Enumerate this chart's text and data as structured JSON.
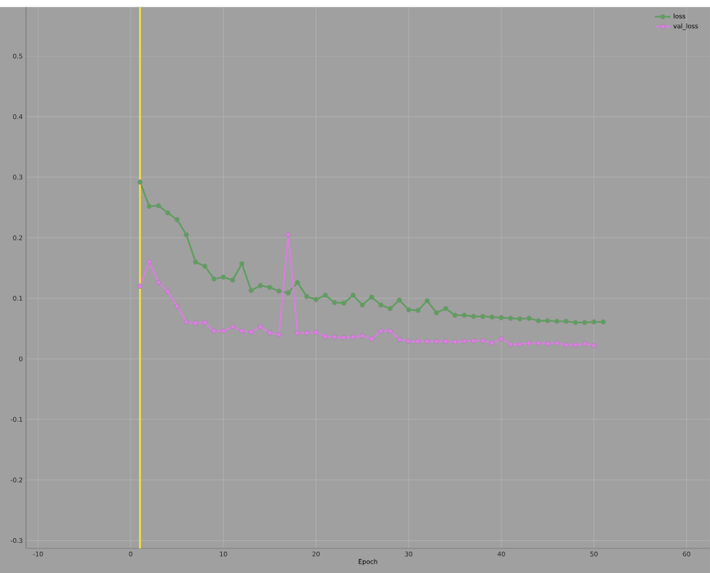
{
  "chart_data": {
    "type": "line",
    "xlabel": "Epoch",
    "series": [
      {
        "name": "loss",
        "color": "#5e9e5e",
        "x": [
          1,
          2,
          3,
          4,
          5,
          6,
          7,
          8,
          9,
          10,
          11,
          12,
          13,
          14,
          15,
          16,
          17,
          18,
          19,
          20,
          21,
          22,
          23,
          24,
          25,
          26,
          27,
          28,
          29,
          30,
          31,
          32,
          33,
          34,
          35,
          36,
          37,
          38,
          39,
          40,
          41,
          42,
          43,
          44,
          45,
          46,
          47,
          48,
          49,
          50,
          51
        ],
        "values": [
          0.292,
          0.252,
          0.253,
          0.241,
          0.23,
          0.205,
          0.16,
          0.153,
          0.132,
          0.135,
          0.13,
          0.157,
          0.113,
          0.121,
          0.118,
          0.112,
          0.109,
          0.126,
          0.103,
          0.098,
          0.105,
          0.093,
          0.092,
          0.105,
          0.089,
          0.102,
          0.089,
          0.083,
          0.097,
          0.081,
          0.08,
          0.096,
          0.076,
          0.083,
          0.072,
          0.072,
          0.07,
          0.07,
          0.069,
          0.068,
          0.067,
          0.066,
          0.067,
          0.063,
          0.063,
          0.062,
          0.062,
          0.06,
          0.06,
          0.061,
          0.061
        ]
      },
      {
        "name": "val_loss",
        "color": "#d97ee0",
        "x": [
          1,
          2,
          3,
          4,
          5,
          6,
          7,
          8,
          9,
          10,
          11,
          12,
          13,
          14,
          15,
          16,
          17,
          18,
          19,
          20,
          21,
          22,
          23,
          24,
          25,
          26,
          27,
          28,
          29,
          30,
          31,
          32,
          33,
          34,
          35,
          36,
          37,
          38,
          39,
          40,
          41,
          42,
          43,
          44,
          45,
          46,
          47,
          48,
          49,
          50
        ],
        "values": [
          0.12,
          0.16,
          0.126,
          0.111,
          0.087,
          0.061,
          0.059,
          0.06,
          0.046,
          0.046,
          0.053,
          0.046,
          0.044,
          0.053,
          0.043,
          0.04,
          0.205,
          0.043,
          0.043,
          0.044,
          0.037,
          0.036,
          0.035,
          0.036,
          0.038,
          0.033,
          0.046,
          0.046,
          0.032,
          0.029,
          0.029,
          0.029,
          0.029,
          0.029,
          0.028,
          0.029,
          0.03,
          0.03,
          0.026,
          0.033,
          0.024,
          0.024,
          0.026,
          0.026,
          0.025,
          0.026,
          0.023,
          0.023,
          0.025,
          0.022
        ]
      }
    ],
    "xlim": [
      -11.3,
      62.5
    ],
    "ylim": [
      -0.313,
      0.581
    ],
    "xticks": [
      -10,
      0,
      10,
      20,
      30,
      40,
      50,
      60
    ],
    "yticks": [
      -0.3,
      -0.2,
      -0.1,
      0,
      0.1,
      0.2,
      0.3,
      0.4,
      0.5
    ],
    "ref_lines": [
      {
        "axis": "x",
        "value": 1,
        "color": "#f2d84a"
      }
    ],
    "grid": true,
    "legend": "top right",
    "marker": "circle",
    "line_style": "solid"
  }
}
